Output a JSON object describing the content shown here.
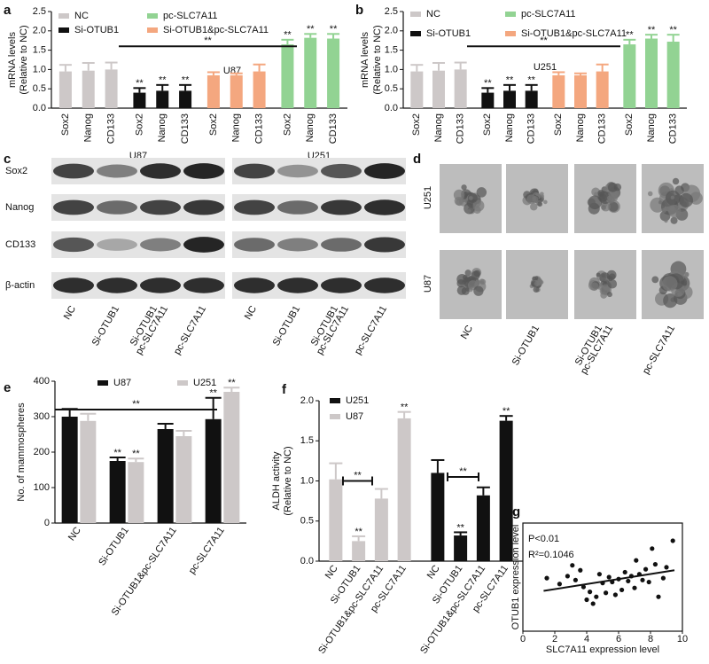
{
  "chart_data": [
    {
      "type": "bar",
      "panel": "a",
      "title": "U87",
      "ylabel": [
        "mRNA levels",
        "(Relative to NC)"
      ],
      "group_by": "series",
      "categories": [
        "Sox2",
        "Nanog",
        "CD133"
      ],
      "ylim": [
        0,
        2.5
      ],
      "yticks": [
        {
          "value": 0,
          "label": "0.0"
        },
        0.5,
        {
          "value": 1,
          "label": "1.0"
        },
        1.5,
        {
          "value": 2,
          "label": "2.0"
        },
        2.5
      ],
      "series": [
        {
          "name": "NC",
          "color": "#cdc8c8",
          "values": [
            0.95,
            0.97,
            1.0
          ],
          "errors": [
            0.17,
            0.2,
            0.18
          ]
        },
        {
          "name": "Si-OTUB1",
          "color": "#111111",
          "values": [
            0.4,
            0.45,
            0.45
          ],
          "errors": [
            0.12,
            0.15,
            0.15
          ],
          "marks": [
            "**",
            "**",
            "**"
          ]
        },
        {
          "name": "Si-OTUB1&pc-SLC7A11",
          "color": "#f4a77f",
          "values": [
            0.85,
            0.85,
            0.95
          ],
          "errors": [
            0.08,
            0.05,
            0.18
          ]
        },
        {
          "name": "pc-SLC7A11",
          "color": "#92d393",
          "values": [
            1.65,
            1.82,
            1.8
          ],
          "errors": [
            0.12,
            0.1,
            0.12
          ],
          "marks": [
            "**",
            "**",
            "**"
          ]
        }
      ],
      "brackets": [
        {
          "label": "**",
          "y": 1.6
        }
      ]
    },
    {
      "type": "bar",
      "panel": "b",
      "title": "U251",
      "ylabel": [
        "mRNA levels",
        "(Relative to NC)"
      ],
      "group_by": "series",
      "categories": [
        "Sox2",
        "Nanog",
        "CD133"
      ],
      "ylim": [
        0,
        2.5
      ],
      "yticks": [
        {
          "value": 0,
          "label": "0.0"
        },
        0.5,
        {
          "value": 1,
          "label": "1.0"
        },
        1.5,
        {
          "value": 2,
          "label": "2.0"
        },
        2.5
      ],
      "series": [
        {
          "name": "NC",
          "color": "#cdc8c8",
          "values": [
            0.95,
            0.97,
            1.0
          ],
          "errors": [
            0.17,
            0.2,
            0.18
          ]
        },
        {
          "name": "Si-OTUB1",
          "color": "#111111",
          "values": [
            0.4,
            0.45,
            0.45
          ],
          "errors": [
            0.12,
            0.15,
            0.15
          ],
          "marks": [
            "**",
            "**",
            "**"
          ]
        },
        {
          "name": "Si-OTUB1&pc-SLC7A11",
          "color": "#f4a77f",
          "values": [
            0.85,
            0.85,
            0.95
          ],
          "errors": [
            0.08,
            0.05,
            0.18
          ]
        },
        {
          "name": "pc-SLC7A11",
          "color": "#92d393",
          "values": [
            1.65,
            1.8,
            1.72
          ],
          "errors": [
            0.12,
            0.1,
            0.18
          ],
          "marks": [
            "**",
            "**",
            "**"
          ]
        }
      ],
      "brackets": [
        {
          "label": "**",
          "y": 1.6
        }
      ]
    },
    {
      "type": "bar",
      "panel": "e",
      "ylabel": [
        "No. of mammospheres"
      ],
      "group_by": "category",
      "categories": [
        "NC",
        "Si-OTUB1",
        "Si-OTUB1&pc-SLC7A11",
        "pc-SLC7A11"
      ],
      "ylim": [
        0,
        400
      ],
      "yticks": [
        0,
        100,
        200,
        300,
        400
      ],
      "series": [
        {
          "name": "U87",
          "color": "#111111",
          "values": [
            300,
            175,
            265,
            293
          ],
          "errors": [
            22,
            10,
            15,
            60
          ],
          "marks": [
            null,
            "**",
            null,
            "**"
          ]
        },
        {
          "name": "U251",
          "color": "#cdc8c8",
          "values": [
            288,
            172,
            245,
            370
          ],
          "errors": [
            20,
            10,
            15,
            12
          ],
          "marks": [
            null,
            "**",
            null,
            "**"
          ]
        }
      ],
      "brackets": [
        {
          "label": "**",
          "y": 320
        }
      ]
    },
    {
      "type": "bar",
      "panel": "f",
      "ylabel": [
        "ALDH activity",
        "(Relative to NC)"
      ],
      "group_by": "series",
      "categories": [
        "NC",
        "Si-OTUB1",
        "Si-OTUB1&pc-SLC7A11",
        "pc-SLC7A11"
      ],
      "ylim": [
        0,
        2
      ],
      "yticks": [
        {
          "value": 0,
          "label": "0.0"
        },
        0.5,
        {
          "value": 1,
          "label": "1.0"
        },
        1.5,
        {
          "value": 2,
          "label": "2.0"
        }
      ],
      "series": [
        {
          "name": "U87",
          "color": "#cdc8c8",
          "values": [
            1.02,
            0.25,
            0.78,
            1.78
          ],
          "errors": [
            0.2,
            0.06,
            0.12,
            0.08
          ],
          "marks": [
            null,
            "**",
            null,
            "**"
          ]
        },
        {
          "name": "U251",
          "color": "#111111",
          "values": [
            1.1,
            0.32,
            0.82,
            1.75
          ],
          "errors": [
            0.16,
            0.04,
            0.1,
            0.06
          ],
          "marks": [
            null,
            "**",
            null,
            "**"
          ]
        }
      ],
      "brackets": [
        {
          "label": "**",
          "y": 1.0
        },
        {
          "label": "**",
          "y": 1.05
        }
      ]
    },
    {
      "type": "scatter",
      "panel": "g",
      "xlabel": "SLC7A11 expression level",
      "ylabel": "OTUB1 expression level",
      "annotations": [
        "P<0.01",
        "R²=0.1046"
      ],
      "xlim": [
        0,
        10
      ],
      "xticks": [
        0,
        2,
        4,
        6,
        8,
        10
      ],
      "ylim": [
        0,
        11
      ],
      "x": [
        1.5,
        2.3,
        2.8,
        3.1,
        3.3,
        3.6,
        3.8,
        4.0,
        4.2,
        4.4,
        4.6,
        4.8,
        5.0,
        5.2,
        5.4,
        5.6,
        5.8,
        6.0,
        6.2,
        6.4,
        6.6,
        6.8,
        7.0,
        7.1,
        7.3,
        7.5,
        7.7,
        7.9,
        8.1,
        8.3,
        8.5,
        8.8,
        9.0,
        9.4
      ],
      "y": [
        5.4,
        4.8,
        5.6,
        6.7,
        5.2,
        6.2,
        4.5,
        3.2,
        4.0,
        2.8,
        3.5,
        5.8,
        4.9,
        3.9,
        5.5,
        5.0,
        3.7,
        5.3,
        4.2,
        6.0,
        5.1,
        5.6,
        4.4,
        7.2,
        5.8,
        5.2,
        6.3,
        5.0,
        8.4,
        6.8,
        3.5,
        5.4,
        6.5,
        9.2
      ],
      "trend_x": [
        1.3,
        9.5
      ],
      "trend_y": [
        4.1,
        6.2
      ],
      "color": "#111111"
    }
  ],
  "blot": {
    "panel": "c",
    "cells": [
      "U87",
      "U251"
    ],
    "rows": [
      "Sox2",
      "Nanog",
      "CD133",
      "β-actin"
    ],
    "columns": [
      [
        "NC"
      ],
      [
        "Si-OTUB1"
      ],
      [
        "Si-OTUB1",
        "pc-SLC7A11"
      ],
      [
        "pc-SLC7A11"
      ]
    ]
  },
  "spheres": {
    "panel": "d",
    "rows": [
      "U251",
      "U87"
    ],
    "columns": [
      [
        "NC"
      ],
      [
        "Si-OTUB1"
      ],
      [
        "Si-OTUB1",
        "pc-SLC7A11"
      ],
      [
        "pc-SLC7A11"
      ]
    ]
  }
}
